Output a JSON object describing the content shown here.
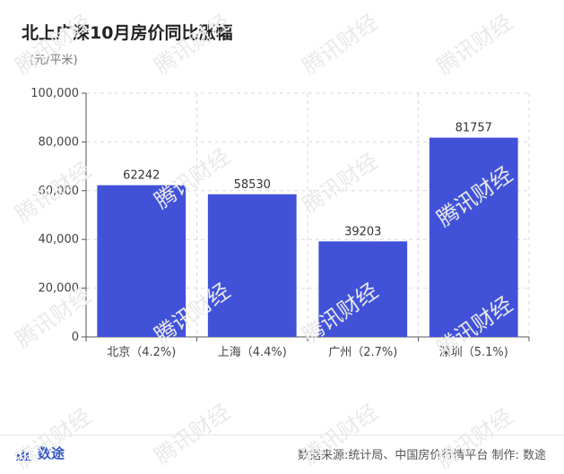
{
  "title": "北上广深10月房价同比涨幅",
  "unit": "(元/平米)",
  "watermark": "腾讯财经",
  "footer": {
    "brand": "数途",
    "source": "数据来源:统计局、中国房价行情平台 制作: 数途"
  },
  "colors": {
    "bar": "#4152d9",
    "brand": "#3456c8",
    "grid": "#d9d9d9",
    "axis": "#555555"
  },
  "chart_data": {
    "type": "bar",
    "title": "北上广深10月房价同比涨幅",
    "ylabel": "(元/平米)",
    "categories": [
      "北京（4.2%)",
      "上海（4.4%)",
      "广州（2.7%)",
      "深圳（5.1%)"
    ],
    "values": [
      62242,
      58530,
      39203,
      81757
    ],
    "data_labels": [
      "62242",
      "58530",
      "39203",
      "81757"
    ],
    "yticks": [
      0,
      20000,
      40000,
      60000,
      80000,
      100000
    ],
    "ytick_labels": [
      "0",
      "20,000",
      "40,000",
      "60,000",
      "80,000",
      "100,000"
    ],
    "ylim": [
      0,
      100000
    ],
    "grid": true,
    "grid_style": "dashed",
    "legend": false
  }
}
